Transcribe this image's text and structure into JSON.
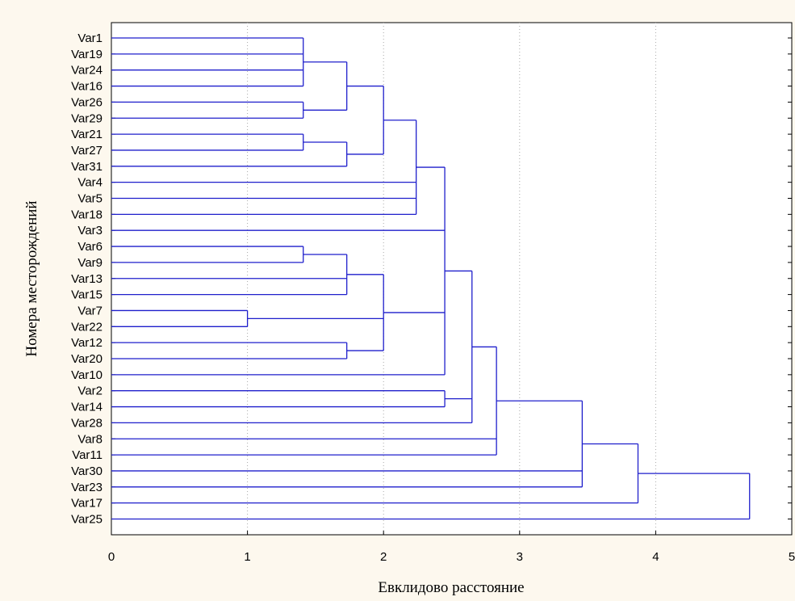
{
  "chart_data": {
    "type": "dendrogram",
    "orientation": "horizontal",
    "xlabel": "Евклидово расстояние",
    "ylabel": "Номера месторождений",
    "xlim": [
      0,
      5
    ],
    "xticks": [
      "0",
      "1",
      "2",
      "3",
      "4",
      "5"
    ],
    "grid": "vertical dotted",
    "line_color": "#1f1fcc",
    "leaves": [
      "Var1",
      "Var19",
      "Var24",
      "Var16",
      "Var26",
      "Var29",
      "Var21",
      "Var27",
      "Var31",
      "Var4",
      "Var5",
      "Var18",
      "Var3",
      "Var6",
      "Var9",
      "Var13",
      "Var15",
      "Var7",
      "Var22",
      "Var12",
      "Var20",
      "Var10",
      "Var2",
      "Var14",
      "Var28",
      "Var8",
      "Var11",
      "Var30",
      "Var23",
      "Var17",
      "Var25"
    ],
    "merges": [
      {
        "children": [
          "Var1",
          "Var19",
          "Var24",
          "Var16"
        ],
        "height": 1.41
      },
      {
        "children": [
          "Var26",
          "Var29"
        ],
        "height": 1.41
      },
      {
        "children": [
          "Var21",
          "Var27"
        ],
        "height": 1.41
      },
      {
        "children": [
          "Var6",
          "Var9"
        ],
        "height": 1.41
      },
      {
        "children": [
          "Var7",
          "Var22"
        ],
        "height": 1.0
      },
      {
        "children": [
          "Var1-Var16",
          "Var26-Var29"
        ],
        "height": 1.73
      },
      {
        "children": [
          "Var21-Var27",
          "Var31"
        ],
        "height": 1.73
      },
      {
        "children": [
          "Var6-Var9",
          "Var13",
          "Var15"
        ],
        "height": 1.73
      },
      {
        "children": [
          "Var12",
          "Var20"
        ],
        "height": 1.73
      },
      {
        "children": [
          "Var1-Var29",
          "Var21-Var31"
        ],
        "height": 2.0
      },
      {
        "children": [
          "Var6-Var15",
          "Var7-Var22",
          "Var12-Var20"
        ],
        "height": 2.0
      },
      {
        "children": [
          "Var1-Var31",
          "Var4",
          "Var5",
          "Var18"
        ],
        "height": 2.24
      },
      {
        "children": [
          "Var1-Var18",
          "Var3",
          "Var6-Var20",
          "Var10"
        ],
        "height": 2.45
      },
      {
        "children": [
          "Var2",
          "Var14"
        ],
        "height": 2.45
      },
      {
        "children": [
          "Var1-Var10",
          "Var2-Var14",
          "Var28"
        ],
        "height": 2.65
      },
      {
        "children": [
          "Var1-Var28",
          "Var8",
          "Var11"
        ],
        "height": 2.83
      },
      {
        "children": [
          "Var1-Var11",
          "Var30",
          "Var23"
        ],
        "height": 3.46
      },
      {
        "children": [
          "Var1-Var23",
          "Var17"
        ],
        "height": 3.87
      },
      {
        "children": [
          "Var1-Var17",
          "Var25"
        ],
        "height": 4.69
      }
    ]
  }
}
